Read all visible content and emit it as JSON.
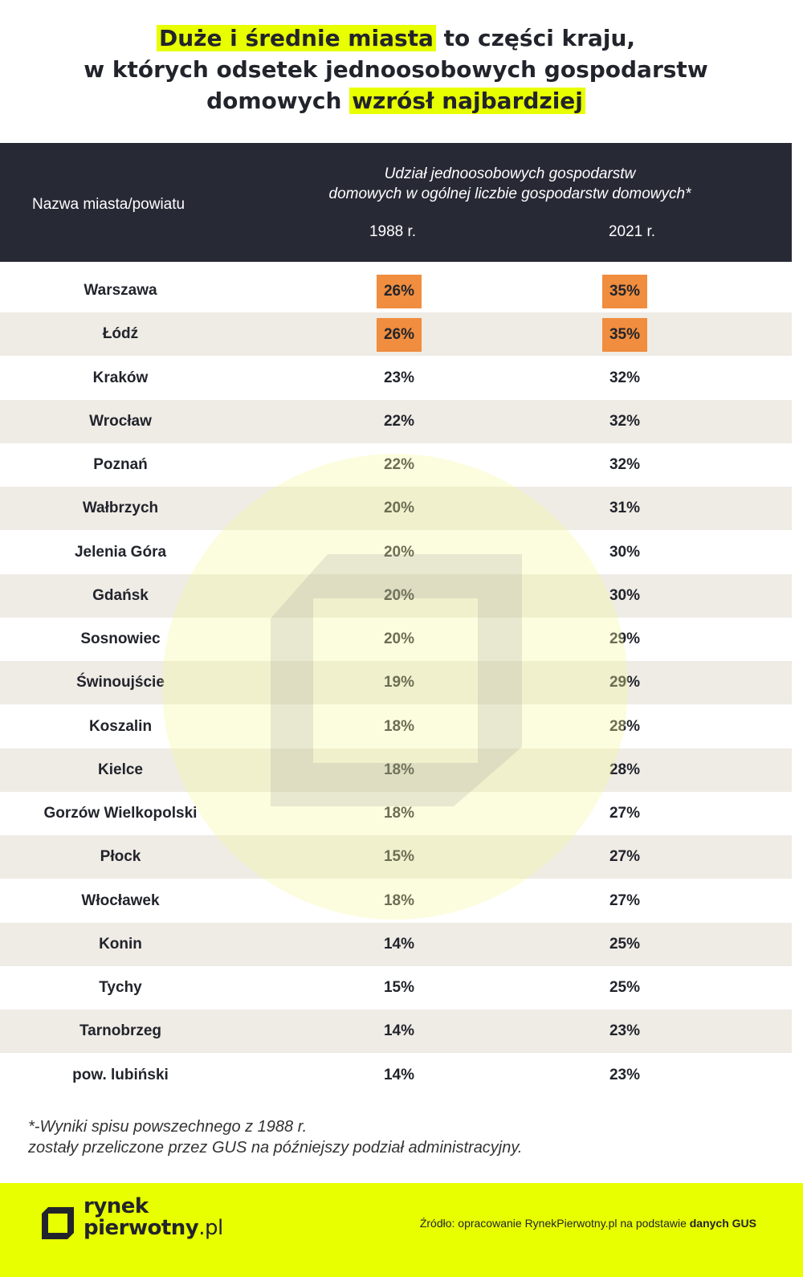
{
  "header": {
    "title": [
      [
        {
          "text": "Duże i średnie miasta",
          "highlight": true
        },
        {
          "text": " to części kraju,",
          "highlight": false
        }
      ],
      [
        {
          "text": "w których odsetek jednoosobowych gospodarstw",
          "highlight": false
        }
      ],
      [
        {
          "text": "domowych ",
          "highlight": false
        },
        {
          "text": "wzrósł najbardziej",
          "highlight": true
        }
      ]
    ]
  },
  "table": {
    "columns": {
      "name": "Nazwa miasta/powiatu",
      "share": [
        "Udział jednoosobowych gospodarstw",
        "domowych w ogólnej liczbie gospodarstw domowych*"
      ],
      "years": [
        "1988 r.",
        "2021 r."
      ]
    },
    "rows": [
      [
        "Warszawa",
        "26%",
        "35%"
      ],
      [
        "Łódź",
        "26%",
        "35%"
      ],
      [
        "Kraków",
        "23%",
        "32%"
      ],
      [
        "Wrocław",
        "22%",
        "32%"
      ],
      [
        "Poznań",
        "22%",
        "32%"
      ],
      [
        "Wałbrzych",
        "20%",
        "31%"
      ],
      [
        "Jelenia Góra",
        "20%",
        "30%"
      ],
      [
        "Gdańsk",
        "20%",
        "30%"
      ],
      [
        "Sosnowiec",
        "20%",
        "29%"
      ],
      [
        "Świnoujście",
        "19%",
        "29%"
      ],
      [
        "Koszalin",
        "18%",
        "28%"
      ],
      [
        "Kielce",
        "18%",
        "28%"
      ],
      [
        "Gorzów Wielkopolski",
        "18%",
        "27%"
      ],
      [
        "Płock",
        "15%",
        "27%"
      ],
      [
        "Włocławek",
        "18%",
        "27%"
      ],
      [
        "Konin",
        "14%",
        "25%"
      ],
      [
        "Tychy",
        "15%",
        "25%"
      ],
      [
        "Tarnobrzeg",
        "14%",
        "23%"
      ],
      [
        "pow. lubiński",
        "14%",
        "23%"
      ]
    ],
    "highlighted_rows": [
      0,
      1
    ]
  },
  "footnote": [
    "*-Wyniki spisu powszechnego z 1988 r.",
    "zostały przeliczone przez GUS na późniejszy podział administracyjny."
  ],
  "footer": {
    "logo": [
      "rynek",
      "pierwotny",
      ".pl"
    ],
    "source": "Źródło: opracowanie RynekPierwotny.pl na podstawie ",
    "source_bold": "danych GUS"
  }
}
